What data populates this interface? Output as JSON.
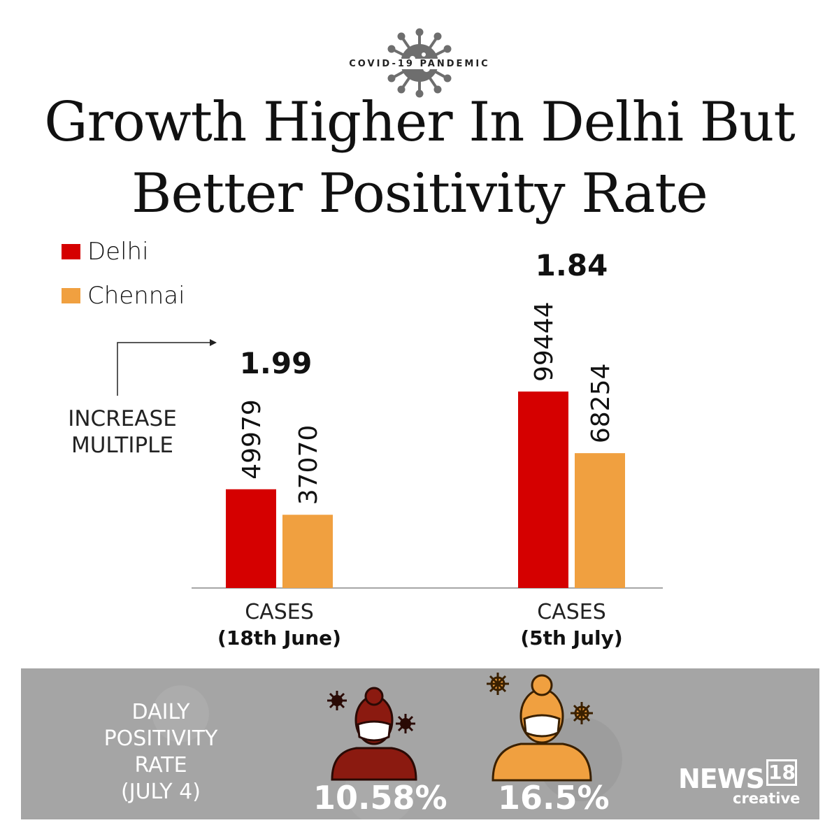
{
  "header": {
    "kicker": "COVID-19 PANDEMIC",
    "title_line1": "Growth Higher In Delhi But",
    "title_line2": "Better Positivity Rate"
  },
  "colors": {
    "delhi": "#d50000",
    "chennai": "#f0a040",
    "panel": "#a5a5a5",
    "delhi_figure": "#8b1a10",
    "chennai_figure": "#f0a040"
  },
  "chart_data": {
    "type": "bar",
    "categories": [
      {
        "top": "CASES",
        "bottom": "(18th June)"
      },
      {
        "top": "CASES",
        "bottom": "(5th July)"
      }
    ],
    "series": [
      {
        "name": "Delhi",
        "values": [
          49979,
          99444
        ]
      },
      {
        "name": "Chennai",
        "values": [
          37070,
          68254
        ]
      }
    ],
    "increase_multiple": [
      "1.99",
      "1.84"
    ],
    "annotation": "INCREASE MULTIPLE",
    "grid": false,
    "legend": "top-left",
    "ylim": [
      0,
      99444
    ]
  },
  "positivity": {
    "title_lines": [
      "DAILY",
      "POSITIVITY",
      "RATE",
      "(JULY 4)"
    ],
    "delhi_rate": "10.58%",
    "chennai_rate": "16.5%",
    "delhi_icon": "masked-woman-icon",
    "chennai_icon": "masked-woman-icon"
  },
  "brand": {
    "news": "NEWS",
    "number": "18",
    "sub": "creative"
  }
}
